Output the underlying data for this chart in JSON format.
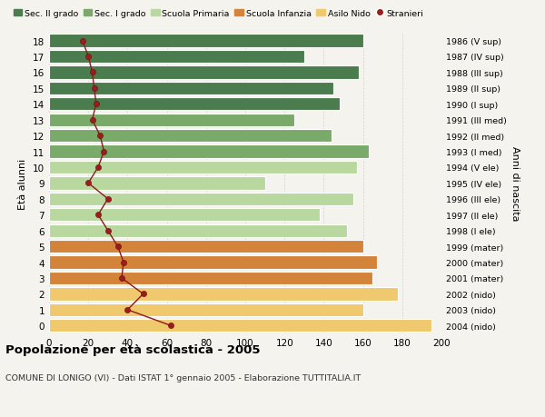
{
  "ages": [
    18,
    17,
    16,
    15,
    14,
    13,
    12,
    11,
    10,
    9,
    8,
    7,
    6,
    5,
    4,
    3,
    2,
    1,
    0
  ],
  "right_labels_by_age": {
    "18": "1986 (V sup)",
    "17": "1987 (IV sup)",
    "16": "1988 (III sup)",
    "15": "1989 (II sup)",
    "14": "1990 (I sup)",
    "13": "1991 (III med)",
    "12": "1992 (II med)",
    "11": "1993 (I med)",
    "10": "1994 (V ele)",
    "9": "1995 (IV ele)",
    "8": "1996 (III ele)",
    "7": "1997 (II ele)",
    "6": "1998 (I ele)",
    "5": "1999 (mater)",
    "4": "2000 (mater)",
    "3": "2001 (mater)",
    "2": "2002 (nido)",
    "1": "2003 (nido)",
    "0": "2004 (nido)"
  },
  "bar_values": [
    160,
    130,
    158,
    145,
    148,
    125,
    144,
    163,
    157,
    110,
    155,
    138,
    152,
    160,
    167,
    165,
    178,
    160,
    195
  ],
  "bar_colors": [
    "#4a7c4e",
    "#4a7c4e",
    "#4a7c4e",
    "#4a7c4e",
    "#4a7c4e",
    "#7aaa6a",
    "#7aaa6a",
    "#7aaa6a",
    "#b8d8a0",
    "#b8d8a0",
    "#b8d8a0",
    "#b8d8a0",
    "#b8d8a0",
    "#d4843a",
    "#d4843a",
    "#d4843a",
    "#f0c96e",
    "#f0c96e",
    "#f0c96e"
  ],
  "stranieri_values": [
    17,
    20,
    22,
    23,
    24,
    22,
    26,
    28,
    25,
    20,
    30,
    25,
    30,
    35,
    38,
    37,
    48,
    40,
    62
  ],
  "legend_labels": [
    "Sec. II grado",
    "Sec. I grado",
    "Scuola Primaria",
    "Scuola Infanzia",
    "Asilo Nido",
    "Stranieri"
  ],
  "legend_colors": [
    "#4a7c4e",
    "#7aaa6a",
    "#b8d8a0",
    "#d4843a",
    "#f0c96e",
    "#9b1c1c"
  ],
  "title": "Popolazione per età scolastica - 2005",
  "subtitle": "COMUNE DI LONIGO (VI) - Dati ISTAT 1° gennaio 2005 - Elaborazione TUTTITALIA.IT",
  "ylabel_left": "Età alunni",
  "ylabel_right": "Anni di nascita",
  "xlim": [
    0,
    200
  ],
  "xticks": [
    0,
    20,
    40,
    60,
    80,
    100,
    120,
    140,
    160,
    180,
    200
  ],
  "background_color": "#f5f3ee",
  "grid_color": "#cccccc"
}
